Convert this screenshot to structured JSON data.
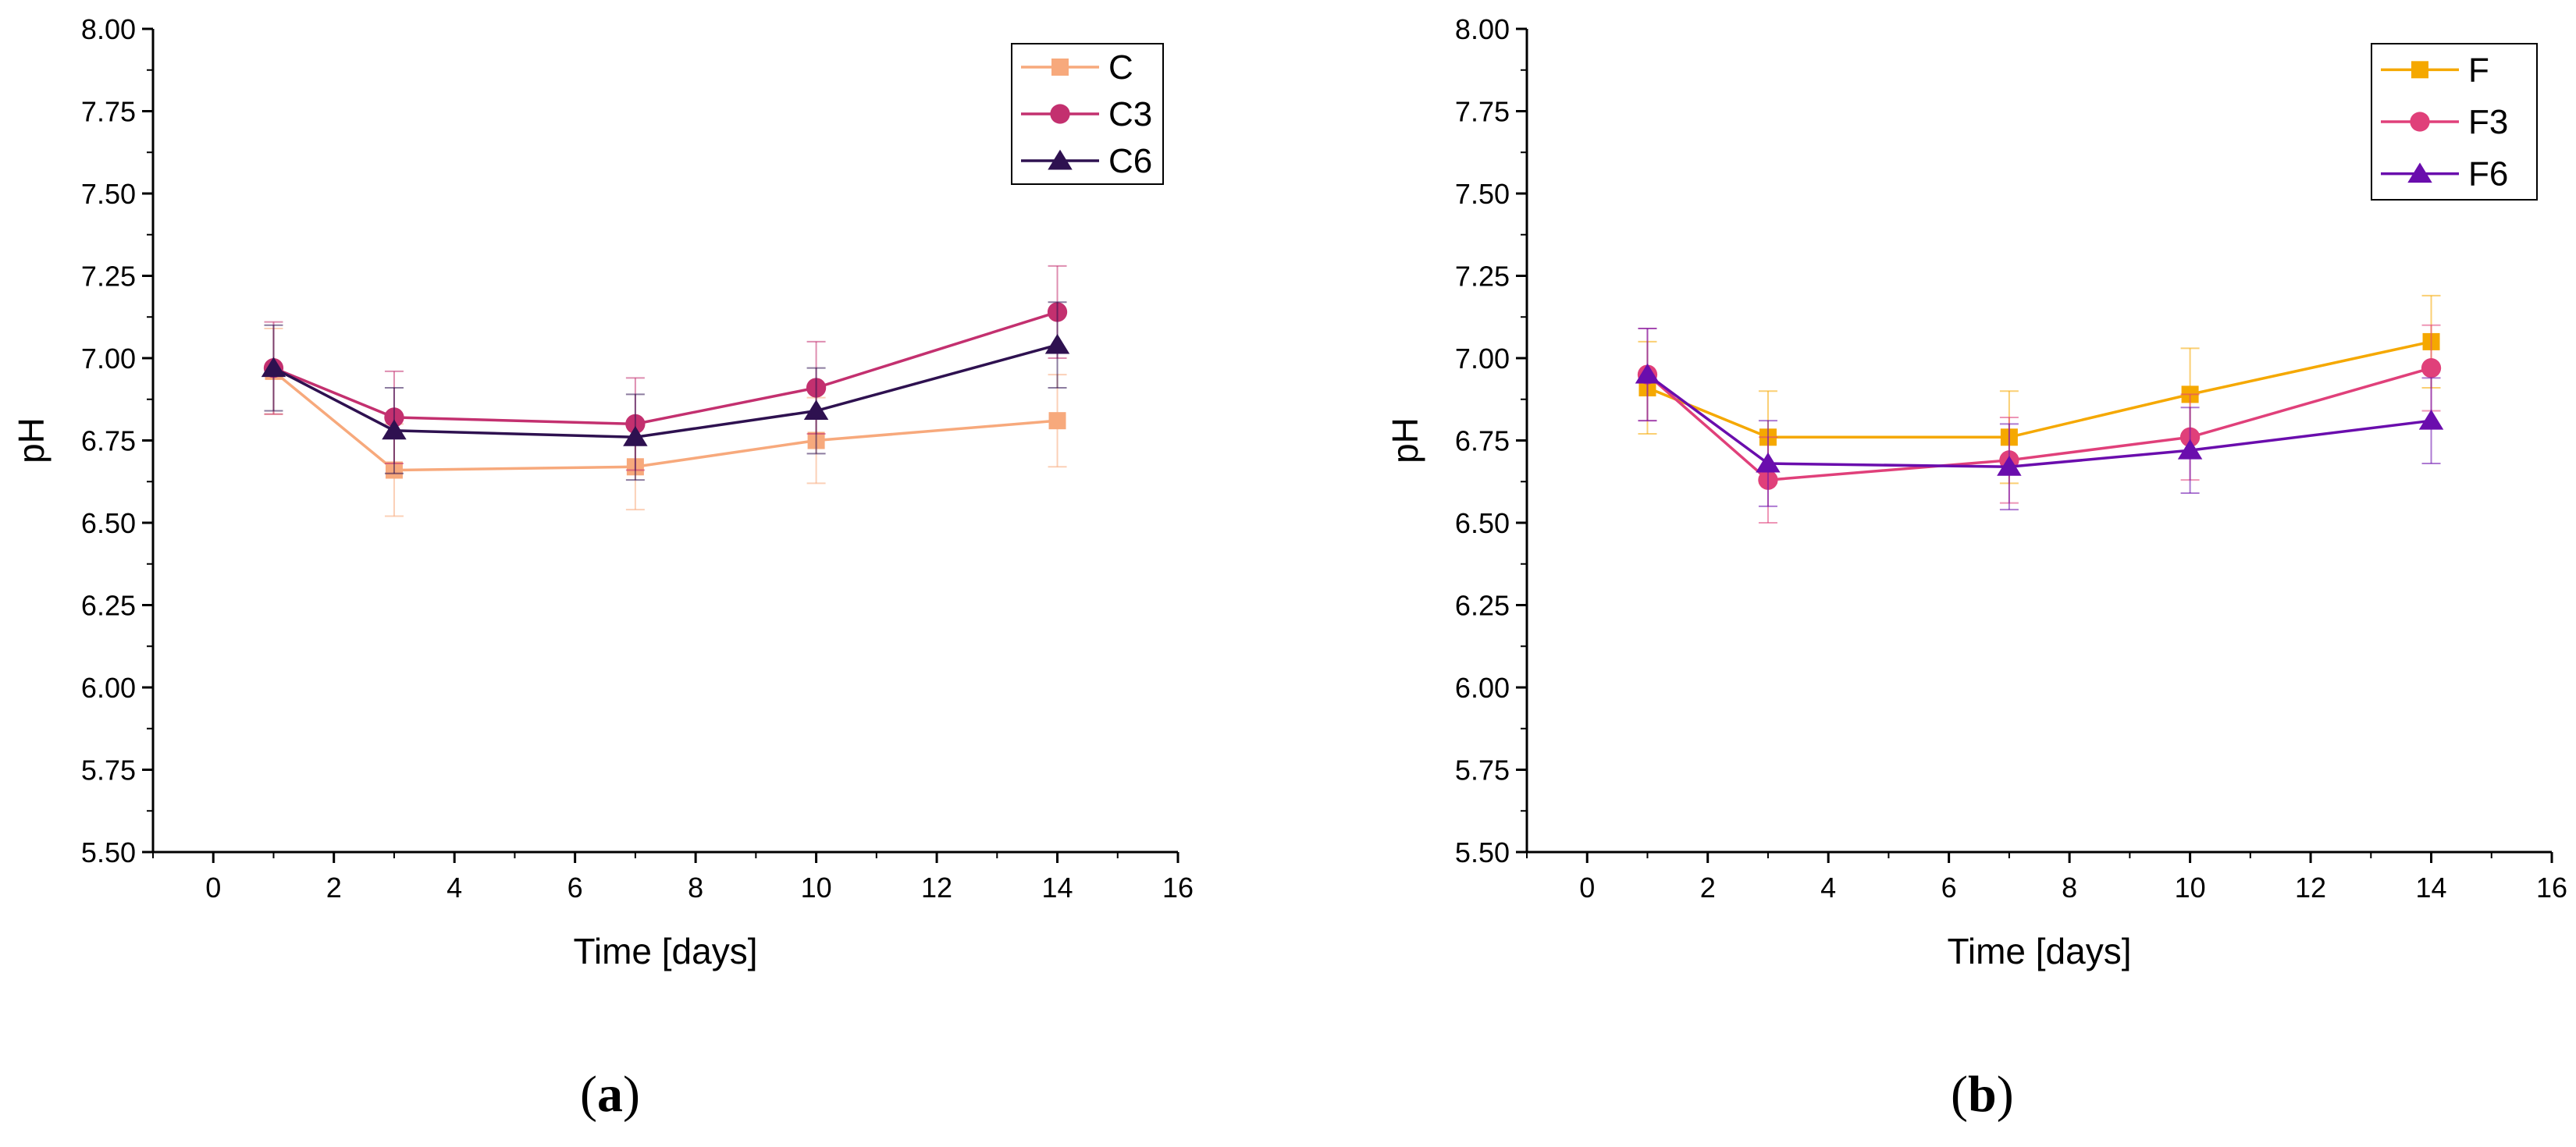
{
  "chart_data": [
    {
      "type": "line",
      "panel_label": "a",
      "xlabel": "Time [days]",
      "ylabel": "pH",
      "xlim": [
        -1,
        16
      ],
      "ylim": [
        5.5,
        8.0
      ],
      "xticks": [
        "0",
        "2",
        "4",
        "6",
        "8",
        "10",
        "12",
        "14",
        "16"
      ],
      "yticks": [
        "5.50",
        "5.75",
        "6.00",
        "6.25",
        "6.50",
        "6.75",
        "7.00",
        "7.25",
        "7.50",
        "7.75",
        "8.00"
      ],
      "grid": false,
      "legend": "top-right",
      "x": [
        1,
        3,
        7,
        10,
        14
      ],
      "series": [
        {
          "name": "C",
          "color": "#f7a97c",
          "marker": "square",
          "values": [
            6.96,
            6.66,
            6.67,
            6.75,
            6.81
          ],
          "errors": [
            0.13,
            0.14,
            0.13,
            0.13,
            0.14
          ]
        },
        {
          "name": "C3",
          "color": "#c3306f",
          "marker": "circle",
          "values": [
            6.97,
            6.82,
            6.8,
            6.91,
            7.14
          ],
          "errors": [
            0.14,
            0.14,
            0.14,
            0.14,
            0.14
          ]
        },
        {
          "name": "C6",
          "color": "#2e1150",
          "marker": "triangle",
          "values": [
            6.97,
            6.78,
            6.76,
            6.84,
            7.04
          ],
          "errors": [
            0.13,
            0.13,
            0.13,
            0.13,
            0.13
          ]
        }
      ]
    },
    {
      "type": "line",
      "panel_label": "b",
      "xlabel": "Time [days]",
      "ylabel": "pH",
      "xlim": [
        -1,
        16
      ],
      "ylim": [
        5.5,
        8.0
      ],
      "xticks": [
        "0",
        "2",
        "4",
        "6",
        "8",
        "10",
        "12",
        "14",
        "16"
      ],
      "yticks": [
        "5.50",
        "5.75",
        "6.00",
        "6.25",
        "6.50",
        "6.75",
        "7.00",
        "7.25",
        "7.50",
        "7.75",
        "8.00"
      ],
      "grid": false,
      "legend": "top-right",
      "x": [
        1,
        3,
        7,
        10,
        14
      ],
      "series": [
        {
          "name": "F",
          "color": "#f5a800",
          "marker": "square",
          "values": [
            6.91,
            6.76,
            6.76,
            6.89,
            7.05
          ],
          "errors": [
            0.14,
            0.14,
            0.14,
            0.14,
            0.14
          ]
        },
        {
          "name": "F3",
          "color": "#e0407a",
          "marker": "circle",
          "values": [
            6.95,
            6.63,
            6.69,
            6.76,
            6.97
          ],
          "errors": [
            0.14,
            0.13,
            0.13,
            0.13,
            0.13
          ]
        },
        {
          "name": "F6",
          "color": "#6a0dad",
          "marker": "triangle",
          "values": [
            6.95,
            6.68,
            6.67,
            6.72,
            6.81
          ],
          "errors": [
            0.14,
            0.13,
            0.13,
            0.13,
            0.13
          ]
        }
      ]
    }
  ]
}
